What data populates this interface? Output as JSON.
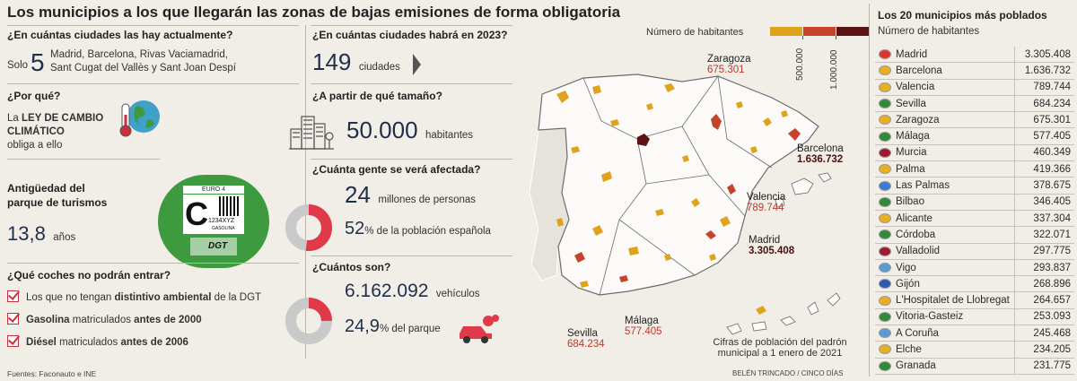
{
  "title": "Los municipios a los que llegarán las zonas de bajas emisiones de forma obligatoria",
  "left": {
    "q1": "¿En cuántas ciudades las hay actualmente?",
    "q1_prefix": "Solo",
    "q1_number": "5",
    "q1_line1": "Madrid, Barcelona, Rivas Vaciamadrid,",
    "q1_line2": "Sant Cugat del Vallès y Sant Joan Despí",
    "q2": "¿Por qué?",
    "q2_line1_pre": "La ",
    "q2_line1_b": "LEY DE CAMBIO",
    "q2_line2": "CLIMÁTICO",
    "q2_line3": "obliga a ello",
    "q3_line1": "Antigüedad del",
    "q3_line2": "parque de turismos",
    "q3_value": "13,8",
    "q3_unit": "años",
    "sticker": {
      "euro": "EURO 4",
      "letter": "C",
      "plate": "1234XYZ",
      "fuel": "GASOLINA",
      "brand": "DGT"
    },
    "q4": "¿Qué coches no podrán entrar?",
    "items": [
      {
        "pre": "Los que no tengan ",
        "bold": "distintivo ambiental",
        "post": " de la DGT"
      },
      {
        "pre": "",
        "bold": "Gasolina",
        "post": " matriculados ",
        "bold2": "antes de 2000"
      },
      {
        "pre": "",
        "bold": "Diésel",
        "post": " matriculados ",
        "bold2": "antes de 2006"
      }
    ],
    "sources": "Fuentes: Faconauto e INE"
  },
  "middle": {
    "q1": "¿En cuántas ciudades habrá en 2023?",
    "q1_value": "149",
    "q1_unit": "ciudades",
    "q2": "¿A partir de qué tamaño?",
    "q2_value": "50.000",
    "q2_unit": "habitantes",
    "q3": "¿Cuánta gente se verá afectada?",
    "q3_value": "24",
    "q3_unit": "millones de personas",
    "q3_pct": "52",
    "q3_pct_unit": "% de la población española",
    "q3_fraction": 0.52,
    "q4": "¿Cuántos son?",
    "q4_value": "6.162.092",
    "q4_unit": "vehículos",
    "q4_pct": "24,9",
    "q4_pct_unit": "% del parque",
    "q4_fraction": 0.249
  },
  "map": {
    "legend_title": "Número de habitantes",
    "legend_ticks": [
      "500.000",
      "1.000.000"
    ],
    "legend_colors": [
      "#e0a21c",
      "#c4432b",
      "#5a1212"
    ],
    "labels": [
      {
        "city": "Zaragoza",
        "value": "675.301"
      },
      {
        "city": "Barcelona",
        "value": "1.636.732"
      },
      {
        "city": "Valencia",
        "value": "789.744"
      },
      {
        "city": "Madrid",
        "value": "3.305.408"
      },
      {
        "city": "Sevilla",
        "value": "684.234"
      },
      {
        "city": "Málaga",
        "value": "577.405"
      }
    ],
    "note_line1": "Cifras de población del padrón",
    "note_line2": "municipal a 1 enero de 2021",
    "credit": "BELÉN TRINCADO / CINCO DÍAS"
  },
  "ranking": {
    "title": "Los 20 municipios más poblados",
    "subtitle": "Número de habitantes",
    "rows": [
      {
        "name": "Madrid",
        "value": "3.305.408",
        "flag": "#d33"
      },
      {
        "name": "Barcelona",
        "value": "1.636.732",
        "flag": "#e8b020"
      },
      {
        "name": "Valencia",
        "value": "789.744",
        "flag": "#e8b020"
      },
      {
        "name": "Sevilla",
        "value": "684.234",
        "flag": "#2e8b3a"
      },
      {
        "name": "Zaragoza",
        "value": "675.301",
        "flag": "#e8b020"
      },
      {
        "name": "Málaga",
        "value": "577.405",
        "flag": "#2e8b3a"
      },
      {
        "name": "Murcia",
        "value": "460.349",
        "flag": "#9b1b30"
      },
      {
        "name": "Palma",
        "value": "419.366",
        "flag": "#e8b020"
      },
      {
        "name": "Las Palmas",
        "value": "378.675",
        "flag": "#3a7bd5"
      },
      {
        "name": "Bilbao",
        "value": "346.405",
        "flag": "#2e8b3a"
      },
      {
        "name": "Alicante",
        "value": "337.304",
        "flag": "#e8b020"
      },
      {
        "name": "Córdoba",
        "value": "322.071",
        "flag": "#2e8b3a"
      },
      {
        "name": "Valladolid",
        "value": "297.775",
        "flag": "#9b1b30"
      },
      {
        "name": "Vigo",
        "value": "293.837",
        "flag": "#5b9bd5"
      },
      {
        "name": "Gijón",
        "value": "268.896",
        "flag": "#2a5db0"
      },
      {
        "name": "L'Hospitalet de Llobregat",
        "value": "264.657",
        "flag": "#e8b020"
      },
      {
        "name": "Vitoria-Gasteiz",
        "value": "253.093",
        "flag": "#2e8b3a"
      },
      {
        "name": "A Coruña",
        "value": "245.468",
        "flag": "#5b9bd5"
      },
      {
        "name": "Elche",
        "value": "234.205",
        "flag": "#e8b020"
      },
      {
        "name": "Granada",
        "value": "231.775",
        "flag": "#2e8b3a"
      }
    ]
  }
}
